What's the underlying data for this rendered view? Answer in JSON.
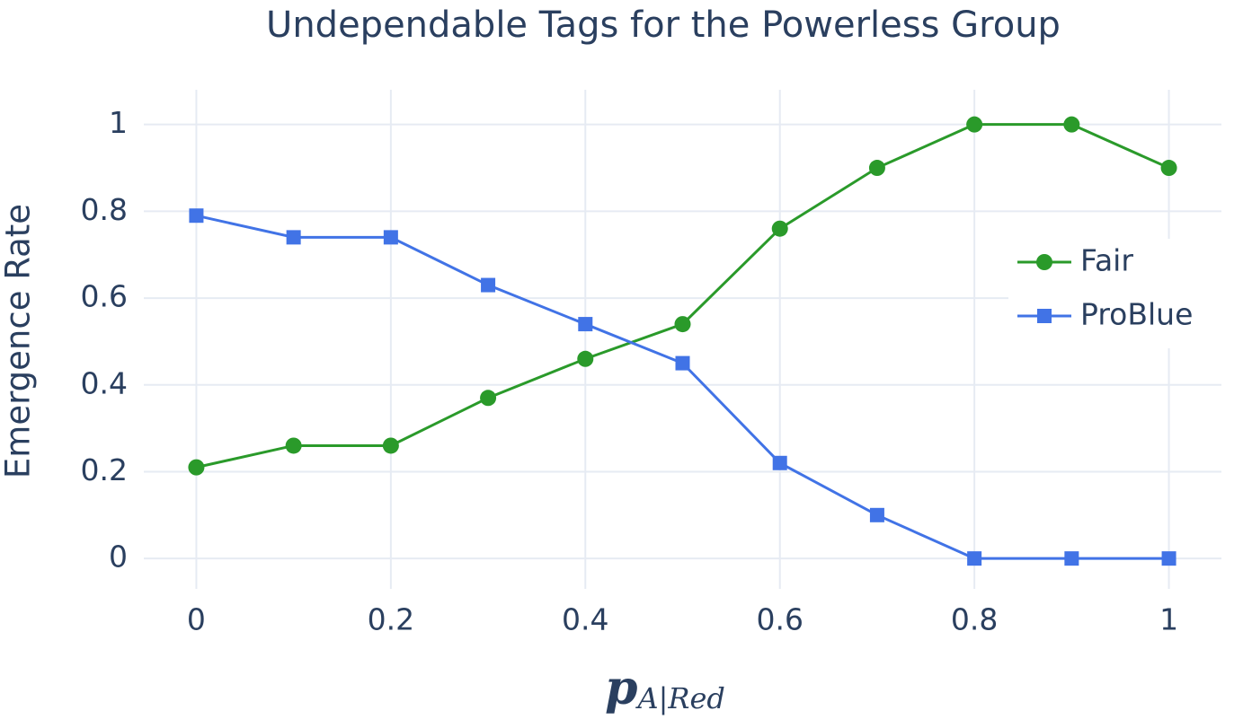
{
  "chart_data": {
    "type": "line",
    "title": "Undependable Tags for the Powerless Group",
    "x_label": "p",
    "x_label_subscript": "A|Red",
    "y_label": "Emergence Rate",
    "x": [
      0,
      0.1,
      0.2,
      0.3,
      0.4,
      0.5,
      0.6,
      0.7,
      0.8,
      0.9,
      1
    ],
    "series": [
      {
        "name": "Fair",
        "color": "#2a9a2a",
        "marker": "circle",
        "values": [
          0.21,
          0.26,
          0.26,
          0.37,
          0.46,
          0.54,
          0.76,
          0.9,
          1,
          1,
          0.9
        ]
      },
      {
        "name": "ProBlue",
        "color": "#4173e6",
        "marker": "square",
        "values": [
          0.79,
          0.74,
          0.74,
          0.63,
          0.54,
          0.45,
          0.22,
          0.1,
          0,
          0,
          0
        ]
      }
    ],
    "xlim": [
      -0.054,
      1.054
    ],
    "ylim": [
      -0.07,
      1.08
    ],
    "xticks": [
      0,
      0.2,
      0.4,
      0.6,
      0.8,
      1
    ],
    "yticks": [
      0,
      0.2,
      0.4,
      0.6,
      0.8,
      1
    ],
    "grid": true,
    "legend": "right"
  }
}
